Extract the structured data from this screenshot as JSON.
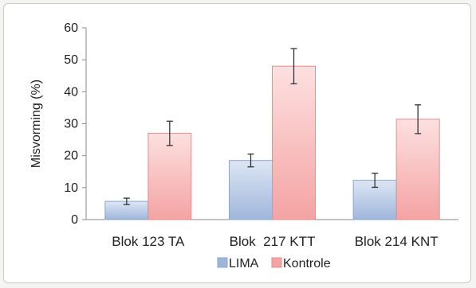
{
  "chart_data": {
    "type": "bar",
    "categories": [
      "Blok 123 TA",
      "Blok  217 KTT",
      "Blok 214 KNT"
    ],
    "series": [
      {
        "name": "LIMA",
        "values": [
          5.7,
          18.5,
          12.3
        ],
        "errors": [
          1.0,
          2.0,
          2.2
        ]
      },
      {
        "name": "Kontrole",
        "values": [
          27,
          48,
          31.4
        ],
        "errors": [
          3.8,
          5.5,
          4.5
        ]
      }
    ],
    "xlabel": "",
    "ylabel": "Misvorming (%)",
    "ylim": [
      0,
      60
    ],
    "yticks": [
      0,
      10,
      20,
      30,
      40,
      50,
      60
    ],
    "grid": false,
    "legend": "bottom",
    "colors": {
      "LIMA": [
        "#dde6f4",
        "#9fb6db",
        "#8aa5cf"
      ],
      "Kontrole": [
        "#fde0e0",
        "#f4a3a3",
        "#e88b8b"
      ]
    }
  }
}
